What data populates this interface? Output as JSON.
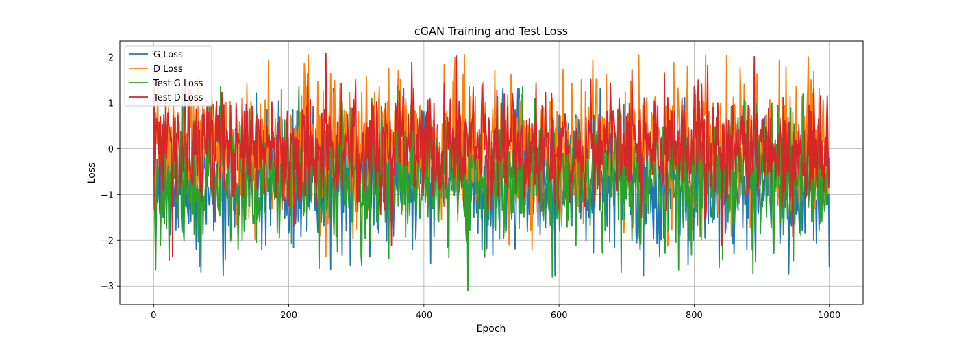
{
  "chart_data": {
    "type": "line",
    "title": "cGAN Training and Test Loss",
    "xlabel": "Epoch",
    "ylabel": "Loss",
    "xlim": [
      -50,
      1050
    ],
    "ylim": [
      -3.4,
      2.35
    ],
    "xticks": [
      0,
      200,
      400,
      600,
      800,
      1000
    ],
    "yticks": [
      -3,
      -2,
      -1,
      0,
      1,
      2
    ],
    "grid": true,
    "legend_position": "top-left",
    "series": [
      {
        "name": "G Loss",
        "color": "#1f77b4",
        "seed": 11,
        "mean": -0.72,
        "std": 0.72,
        "min": -2.78,
        "max": 1.32,
        "anchors": [
          [
            0,
            0.55
          ],
          [
            70,
            -2.7
          ],
          [
            370,
            1.32
          ],
          [
            725,
            -2.78
          ],
          [
            940,
            -2.74
          ],
          [
            1000,
            -2.6
          ]
        ]
      },
      {
        "name": "D Loss",
        "color": "#ff7f0e",
        "seed": 23,
        "mean": -0.05,
        "std": 0.75,
        "min": -2.36,
        "max": 2.05,
        "anchors": [
          [
            0,
            -0.4
          ],
          [
            170,
            1.93
          ],
          [
            255,
            -2.36
          ],
          [
            430,
            1.84
          ],
          [
            848,
            2.04
          ],
          [
            1000,
            -0.5
          ]
        ]
      },
      {
        "name": "Test G Loss",
        "color": "#2ca02c",
        "seed": 37,
        "mean": -0.62,
        "std": 0.72,
        "min": -3.1,
        "max": 1.35,
        "anchors": [
          [
            0,
            0.1
          ],
          [
            3,
            -2.65
          ],
          [
            465,
            -3.1
          ],
          [
            590,
            -2.8
          ],
          [
            1000,
            -0.2
          ]
        ]
      },
      {
        "name": "Test D Loss",
        "color": "#d62728",
        "seed": 53,
        "mean": 0.0,
        "std": 0.62,
        "min": -2.36,
        "max": 2.08,
        "anchors": [
          [
            0,
            -0.6
          ],
          [
            28,
            -2.36
          ],
          [
            255,
            2.08
          ],
          [
            820,
            1.82
          ],
          [
            1000,
            -0.45
          ]
        ]
      }
    ]
  }
}
